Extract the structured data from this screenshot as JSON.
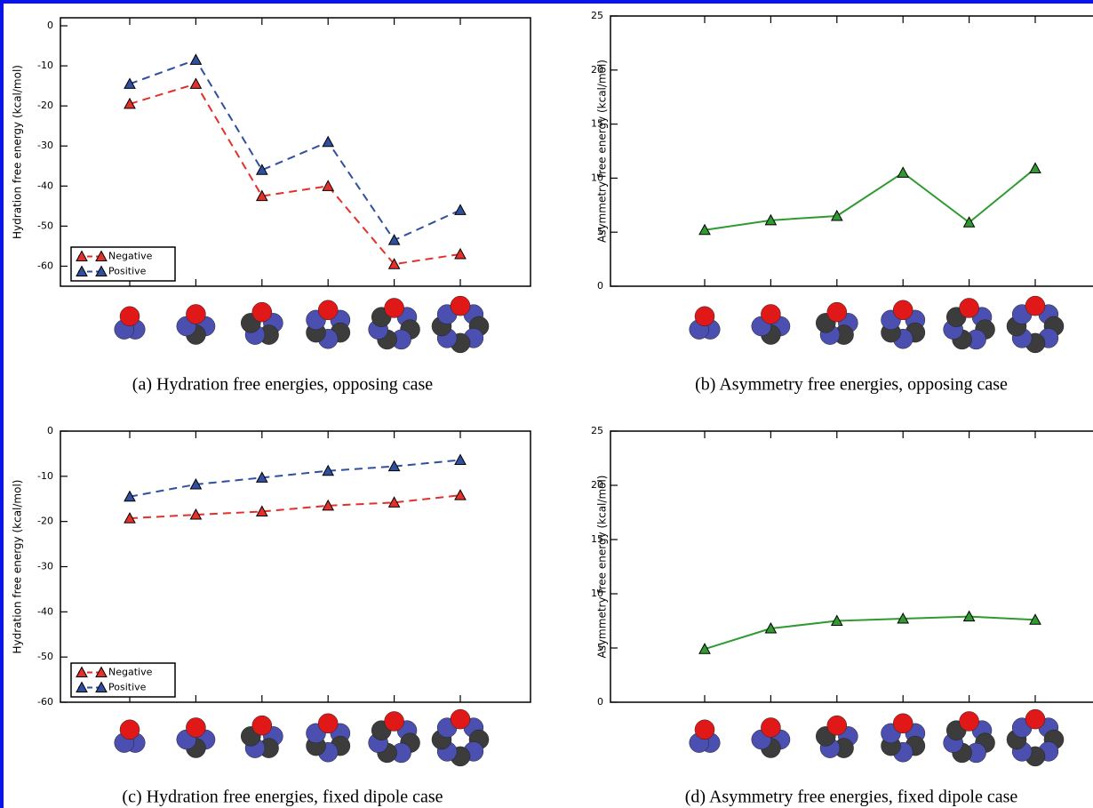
{
  "chart_data": [
    {
      "type": "line",
      "caption": "(a)  Hydration free energies, opposing case",
      "ylabel": "Hydration free energy (kcal/mol)",
      "categories": [
        null,
        null,
        null,
        null,
        null,
        null
      ],
      "series": [
        {
          "name": "Negative",
          "color": "#e2302b",
          "values": [
            -19.5,
            -14.5,
            -42.5,
            -40,
            -59.5,
            -57
          ]
        },
        {
          "name": "Positive",
          "color": "#2f4f9f",
          "values": [
            -14.5,
            -8.5,
            -36,
            -29,
            -53.5,
            -46
          ]
        }
      ],
      "ylim": [
        -65,
        2
      ],
      "yticks": [
        0,
        -10,
        -20,
        -30,
        -40,
        -50,
        -60
      ],
      "dashed": true,
      "marker": "triangle",
      "legend": "lower left"
    },
    {
      "type": "line",
      "caption": "(b)  Asymmetry free energies, opposing case",
      "ylabel": "Asymmetry free energy (kcal/mol)",
      "categories": [
        null,
        null,
        null,
        null,
        null,
        null
      ],
      "series": [
        {
          "name": null,
          "color": "#2f9a2f",
          "values": [
            5.2,
            6.1,
            6.5,
            10.5,
            5.9,
            10.9
          ]
        }
      ],
      "ylim": [
        0,
        25
      ],
      "yticks": [
        0,
        5,
        10,
        15,
        20,
        25
      ],
      "dashed": false,
      "marker": "triangle"
    },
    {
      "type": "line",
      "caption": "(c)  Hydration free energies, fixed dipole case",
      "ylabel": "Hydration free energy (kcal/mol)",
      "categories": [
        null,
        null,
        null,
        null,
        null,
        null
      ],
      "series": [
        {
          "name": "Negative",
          "color": "#e2302b",
          "values": [
            -19.3,
            -18.5,
            -17.8,
            -16.5,
            -15.8,
            -14.2
          ]
        },
        {
          "name": "Positive",
          "color": "#2f4f9f",
          "values": [
            -14.5,
            -11.8,
            -10.3,
            -8.8,
            -7.8,
            -6.4
          ]
        }
      ],
      "ylim": [
        -60,
        0
      ],
      "yticks": [
        0,
        -10,
        -20,
        -30,
        -40,
        -50,
        -60
      ],
      "dashed": true,
      "marker": "triangle",
      "legend": "lower left"
    },
    {
      "type": "line",
      "caption": "(d)  Asymmetry free energies, fixed dipole case",
      "ylabel": "Asymmetry free energy (kcal/mol)",
      "categories": [
        null,
        null,
        null,
        null,
        null,
        null
      ],
      "series": [
        {
          "name": null,
          "color": "#2f9a2f",
          "values": [
            4.9,
            6.8,
            7.5,
            7.7,
            7.9,
            7.6
          ]
        }
      ],
      "ylim": [
        0,
        25
      ],
      "yticks": [
        0,
        5,
        10,
        15,
        20,
        25
      ],
      "dashed": false,
      "marker": "triangle"
    }
  ]
}
